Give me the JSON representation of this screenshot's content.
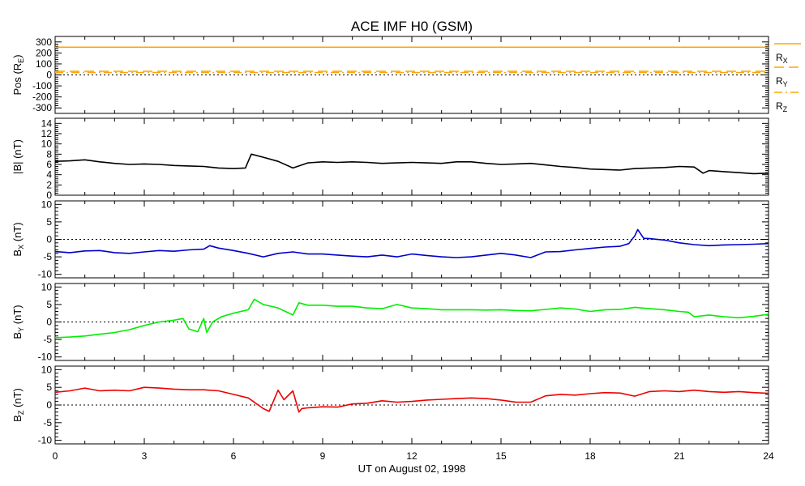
{
  "title": "ACE IMF H0 (GSM)",
  "x_axis": {
    "label": "UT on August 02, 1998",
    "min": 0,
    "max": 24,
    "ticks": [
      "0",
      "3",
      "6",
      "9",
      "12",
      "15",
      "18",
      "21",
      "24"
    ]
  },
  "chart_data": [
    {
      "type": "line",
      "id": "pos",
      "ylabel": "Pos (RE)",
      "ylabel_main": "Pos (R",
      "ylabel_sub": "E",
      "ylabel_end": ")",
      "ylim": [
        -350,
        350
      ],
      "yticks": [
        "300",
        "200",
        "100",
        "0",
        "-100",
        "-200",
        "-300"
      ],
      "ytick_values": [
        300,
        200,
        100,
        0,
        -100,
        -200,
        -300
      ],
      "zero_line": true,
      "series": [
        {
          "name": "RX",
          "color": "#ffa500",
          "dash": "solid",
          "x": [
            0,
            24
          ],
          "values": [
            252,
            252
          ]
        },
        {
          "name": "RY",
          "color": "#ffa500",
          "dash": "dashed",
          "x": [
            0,
            24
          ],
          "values": [
            33,
            33
          ]
        },
        {
          "name": "RZ",
          "color": "#ffa500",
          "dash": "dashdot",
          "x": [
            0,
            24
          ],
          "values": [
            22,
            22
          ]
        }
      ],
      "legend": [
        {
          "main": "R",
          "sub": "X",
          "dash": "solid"
        },
        {
          "main": "R",
          "sub": "Y",
          "dash": "dashed"
        },
        {
          "main": "R",
          "sub": "Z",
          "dash": "dashdot"
        }
      ]
    },
    {
      "type": "line",
      "id": "bmag",
      "ylabel": "|B| (nT)",
      "ylabel_main": "|B| (nT)",
      "ylabel_sub": "",
      "ylabel_end": "",
      "ylim": [
        0,
        15
      ],
      "yticks": [
        "14",
        "12",
        "10",
        "8",
        "6",
        "4",
        "2",
        "0"
      ],
      "ytick_values": [
        14,
        12,
        10,
        8,
        6,
        4,
        2,
        0
      ],
      "zero_line": false,
      "series": [
        {
          "name": "",
          "color": "#000000",
          "x": [
            0,
            0.5,
            1,
            1.5,
            2,
            2.5,
            3,
            3.5,
            4,
            4.5,
            5,
            5.5,
            6,
            6.4,
            6.6,
            7,
            7.5,
            8,
            8.5,
            9,
            9.5,
            10,
            10.5,
            11,
            11.5,
            12,
            12.5,
            13,
            13.5,
            14,
            14.5,
            15,
            15.5,
            16,
            16.5,
            17,
            17.5,
            18,
            18.5,
            19,
            19.5,
            20,
            20.5,
            21,
            21.5,
            21.8,
            22,
            22.5,
            23,
            23.5,
            24
          ],
          "values": [
            6.6,
            6.7,
            6.9,
            6.5,
            6.2,
            6.0,
            6.1,
            6.0,
            5.8,
            5.7,
            5.6,
            5.3,
            5.2,
            5.3,
            8.0,
            7.4,
            6.6,
            5.3,
            6.3,
            6.5,
            6.4,
            6.5,
            6.4,
            6.2,
            6.3,
            6.4,
            6.3,
            6.2,
            6.5,
            6.5,
            6.2,
            6.0,
            6.1,
            6.2,
            5.9,
            5.6,
            5.4,
            5.1,
            5.0,
            4.9,
            5.2,
            5.3,
            5.4,
            5.6,
            5.5,
            4.3,
            4.8,
            4.6,
            4.4,
            4.2,
            4.3
          ]
        }
      ]
    },
    {
      "type": "line",
      "id": "bx",
      "ylabel": "BX (nT)",
      "ylabel_main": "B",
      "ylabel_sub": "X",
      "ylabel_end": " (nT)",
      "ylim": [
        -11,
        11
      ],
      "yticks": [
        "10",
        "5",
        "0",
        "-5",
        "-10"
      ],
      "ytick_values": [
        10,
        5,
        0,
        -5,
        -10
      ],
      "zero_line": true,
      "series": [
        {
          "name": "",
          "color": "#0000cc",
          "x": [
            0,
            0.5,
            1,
            1.5,
            2,
            2.5,
            3,
            3.5,
            4,
            4.5,
            5,
            5.2,
            5.5,
            6,
            6.5,
            7,
            7.5,
            8,
            8.5,
            9,
            9.5,
            10,
            10.5,
            11,
            11.5,
            12,
            12.5,
            13,
            13.5,
            14,
            14.5,
            15,
            15.5,
            16,
            16.5,
            17,
            17.5,
            18,
            18.5,
            19,
            19.3,
            19.5,
            19.6,
            19.8,
            20,
            20.5,
            21,
            21.5,
            22,
            22.5,
            23,
            23.5,
            24
          ],
          "values": [
            -3.5,
            -3.8,
            -3.3,
            -3.2,
            -3.8,
            -4.0,
            -3.6,
            -3.2,
            -3.4,
            -3.0,
            -2.8,
            -1.8,
            -2.5,
            -3.2,
            -4.0,
            -5.0,
            -4.0,
            -3.6,
            -4.2,
            -4.2,
            -4.5,
            -4.8,
            -5.0,
            -4.5,
            -5.0,
            -4.2,
            -4.6,
            -5.0,
            -5.2,
            -5.0,
            -4.5,
            -4.0,
            -4.5,
            -5.2,
            -3.6,
            -3.5,
            -3.0,
            -2.6,
            -2.2,
            -2.0,
            -1.2,
            1.0,
            2.8,
            0.3,
            0.2,
            -0.2,
            -1.0,
            -1.5,
            -1.8,
            -1.6,
            -1.5,
            -1.4,
            -1.2
          ]
        }
      ]
    },
    {
      "type": "line",
      "id": "by",
      "ylabel": "BY (nT)",
      "ylabel_main": "B",
      "ylabel_sub": "Y",
      "ylabel_end": " (nT)",
      "ylim": [
        -11,
        11
      ],
      "yticks": [
        "10",
        "5",
        "0",
        "-5",
        "-10"
      ],
      "ytick_values": [
        10,
        5,
        0,
        -5,
        -10
      ],
      "zero_line": true,
      "series": [
        {
          "name": "",
          "color": "#00ee00",
          "x": [
            0,
            0.5,
            1,
            1.5,
            2,
            2.5,
            3,
            3.5,
            4,
            4.3,
            4.5,
            4.8,
            5,
            5.1,
            5.3,
            5.6,
            6,
            6.5,
            6.7,
            7,
            7.5,
            8,
            8.2,
            8.5,
            9,
            9.5,
            10,
            10.5,
            11,
            11.5,
            12,
            12.5,
            13,
            13.5,
            14,
            14.5,
            15,
            15.5,
            16,
            16.5,
            17,
            17.5,
            18,
            18.5,
            19,
            19.5,
            20,
            20.5,
            21,
            21.3,
            21.5,
            22,
            22.5,
            23,
            23.5,
            24
          ],
          "values": [
            -4.5,
            -4.3,
            -4.0,
            -3.5,
            -3.0,
            -2.2,
            -1.0,
            0.0,
            0.5,
            1.0,
            -2.0,
            -2.8,
            1.0,
            -3.0,
            0.0,
            1.5,
            2.5,
            3.5,
            6.5,
            5.0,
            4.0,
            2.0,
            5.5,
            4.8,
            4.8,
            4.5,
            4.5,
            4.0,
            3.8,
            5.0,
            4.0,
            3.8,
            3.5,
            3.5,
            3.5,
            3.4,
            3.5,
            3.3,
            3.2,
            3.6,
            4.0,
            3.7,
            3.0,
            3.5,
            3.6,
            4.2,
            3.8,
            3.5,
            3.0,
            2.8,
            1.5,
            2.0,
            1.5,
            1.2,
            1.6,
            2.2
          ]
        }
      ]
    },
    {
      "type": "line",
      "id": "bz",
      "ylabel": "BZ (nT)",
      "ylabel_main": "B",
      "ylabel_sub": "Z",
      "ylabel_end": " (nT)",
      "ylim": [
        -11,
        11
      ],
      "yticks": [
        "10",
        "5",
        "0",
        "-5",
        "-10"
      ],
      "ytick_values": [
        10,
        5,
        0,
        -5,
        -10
      ],
      "zero_line": true,
      "series": [
        {
          "name": "",
          "color": "#ee0000",
          "x": [
            0,
            0.5,
            1,
            1.5,
            2,
            2.5,
            3,
            3.5,
            4,
            4.5,
            5,
            5.5,
            6,
            6.5,
            7,
            7.2,
            7.5,
            7.7,
            8,
            8.2,
            8.3,
            8.5,
            9,
            9.5,
            10,
            10.5,
            11,
            11.5,
            12,
            12.5,
            13,
            13.5,
            14,
            14.5,
            15,
            15.5,
            16,
            16.5,
            17,
            17.5,
            18,
            18.5,
            19,
            19.5,
            20,
            20.5,
            21,
            21.5,
            22,
            22.5,
            23,
            23.5,
            24
          ],
          "values": [
            3.6,
            4.0,
            4.8,
            4.0,
            4.2,
            4.0,
            5.0,
            4.8,
            4.5,
            4.3,
            4.3,
            4.0,
            3.0,
            2.0,
            -1.0,
            -1.8,
            4.2,
            1.5,
            4.0,
            -2.0,
            -1.0,
            -0.8,
            -0.5,
            -0.6,
            0.3,
            0.5,
            1.2,
            0.8,
            1.0,
            1.4,
            1.6,
            1.8,
            2.0,
            1.8,
            1.4,
            0.8,
            0.8,
            2.6,
            3.0,
            2.8,
            3.2,
            3.5,
            3.4,
            2.5,
            3.8,
            4.0,
            3.8,
            4.2,
            3.8,
            3.6,
            3.8,
            3.5,
            3.3
          ]
        }
      ]
    }
  ]
}
